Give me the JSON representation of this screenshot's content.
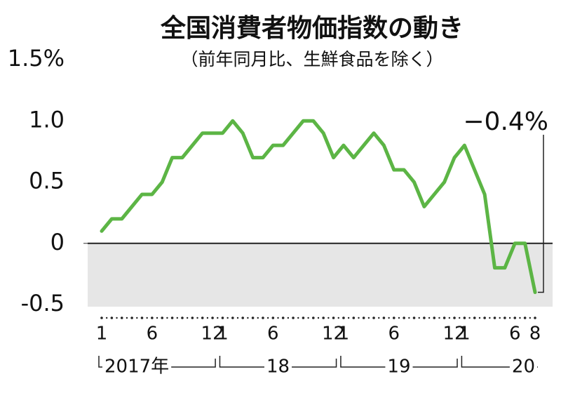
{
  "chart_data": {
    "type": "line",
    "title": "全国消費者物価指数の動き",
    "subtitle": "（前年同月比、生鮮食品を除く）",
    "categories": [
      "1",
      null,
      null,
      null,
      null,
      "6",
      null,
      null,
      null,
      null,
      null,
      "12",
      "1",
      null,
      null,
      null,
      null,
      "6",
      null,
      null,
      null,
      null,
      null,
      "12",
      "1",
      null,
      null,
      null,
      null,
      "6",
      null,
      null,
      null,
      null,
      null,
      "12",
      "1",
      null,
      null,
      null,
      null,
      "6",
      null,
      "8"
    ],
    "year_labels": [
      "2017年",
      "18",
      "19",
      "20"
    ],
    "series": [
      {
        "name": "消費者物価指数",
        "color": "#5cb545",
        "values": [
          0.1,
          0.2,
          0.2,
          0.3,
          0.4,
          0.4,
          0.5,
          0.7,
          0.7,
          0.8,
          0.9,
          0.9,
          0.9,
          1.0,
          0.9,
          0.7,
          0.7,
          0.8,
          0.8,
          0.9,
          1.0,
          1.0,
          0.9,
          0.7,
          0.8,
          0.7,
          0.8,
          0.9,
          0.8,
          0.6,
          0.6,
          0.5,
          0.3,
          0.4,
          0.5,
          0.7,
          0.8,
          0.6,
          0.4,
          -0.2,
          -0.2,
          0.0,
          0.0,
          -0.4
        ]
      }
    ],
    "annotation": "−0.4%",
    "ylim": [
      -0.5,
      1.5
    ],
    "yticks": [
      {
        "value": 1.5,
        "label": "1.5%"
      },
      {
        "value": 1.0,
        "label": "1.0"
      },
      0.5,
      0,
      -0.5
    ],
    "negative_shade_color": "#e6e6e6"
  }
}
